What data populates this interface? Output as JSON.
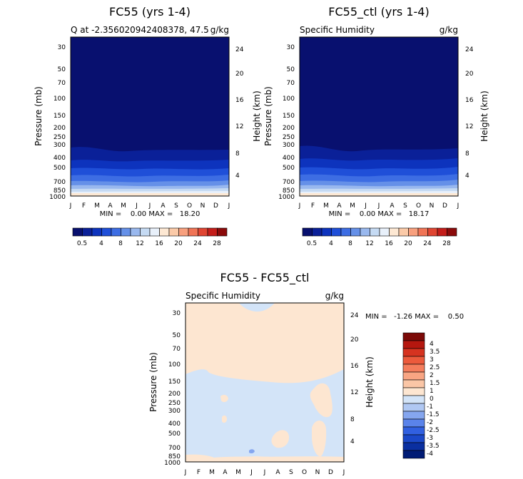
{
  "months": [
    "J",
    "F",
    "M",
    "A",
    "M",
    "J",
    "J",
    "A",
    "S",
    "O",
    "N",
    "D",
    "J"
  ],
  "pressure_levels": [
    30,
    50,
    70,
    100,
    150,
    200,
    250,
    300,
    400,
    500,
    700,
    850,
    1000
  ],
  "height_km": [
    4,
    8,
    12,
    16,
    20,
    24
  ],
  "colors": {
    "abs_scale": [
      "#08106f",
      "#0a2098",
      "#0d33bd",
      "#1f4fd8",
      "#3d6de3",
      "#6590e8",
      "#99b8ee",
      "#c5daf3",
      "#e8f0fa",
      "#fde8d3",
      "#fbcaa8",
      "#f8a07e",
      "#f07456",
      "#e04532",
      "#c41d1a",
      "#8b0a0a"
    ],
    "diff_scale": [
      "#001b75",
      "#0a2fa0",
      "#1b48c8",
      "#3160e0",
      "#5a83ea",
      "#85a6ef",
      "#b0c8f3",
      "#d3e4f8",
      "#fde6d1",
      "#fac6a6",
      "#f8a583",
      "#f47d5c",
      "#ec5a3c",
      "#d63320",
      "#b5170f",
      "#7c0a08"
    ]
  },
  "chart_data": [
    {
      "type": "heatmap",
      "title": "FC55 (yrs 1-4)",
      "subtitle_left": "Q at -2.356020942408378, 47.5",
      "subtitle_right": "g/kg",
      "ylabel": "Pressure (mb)",
      "ylabel_right": "Height (km)",
      "min_max": "MIN =    0.00 MAX =   18.20",
      "min": 0.0,
      "max": 18.2
    },
    {
      "type": "heatmap",
      "title": "FC55_ctl (yrs 1-4)",
      "subtitle_left": "Specific Humidity",
      "subtitle_right": "g/kg",
      "ylabel": "Pressure (mb)",
      "ylabel_right": "Height (km)",
      "min_max": "MIN =    0.00 MAX =   18.17",
      "min": 0.0,
      "max": 18.17
    },
    {
      "type": "heatmap",
      "title": "FC55 - FC55_ctl",
      "subtitle_left": "Specific Humidity",
      "subtitle_right": "g/kg",
      "ylabel": "Pressure (mb)",
      "ylabel_right": "Height (km)",
      "min_max": "MIN =   -1.26 MAX =    0.50",
      "min": -1.26,
      "max": 0.5
    }
  ],
  "colorbar_abs": {
    "labels": [
      "0.5",
      "4",
      "8",
      "12",
      "16",
      "20",
      "24",
      "28"
    ]
  },
  "colorbar_diff": {
    "labels": [
      "4",
      "3.5",
      "3",
      "2.5",
      "2",
      "1.5",
      "1",
      "0",
      "-1",
      "-1.5",
      "-2",
      "-2.5",
      "-3",
      "-3.5",
      "-4"
    ]
  }
}
